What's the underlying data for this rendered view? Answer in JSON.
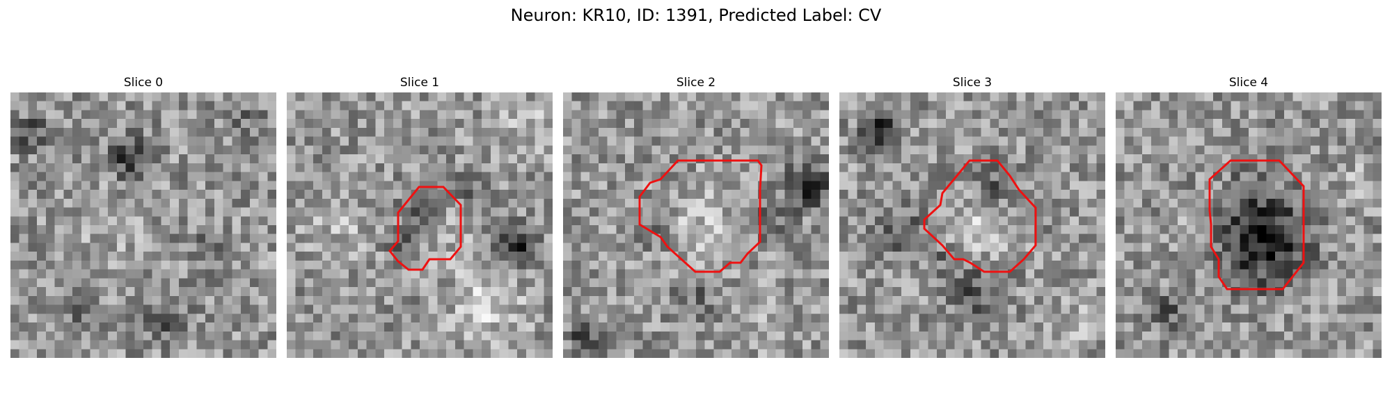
{
  "figure": {
    "title": "Neuron: KR10, ID: 1391, Predicted Label: CV"
  },
  "slices": [
    {
      "title": "Slice 0",
      "has_roi": false
    },
    {
      "title": "Slice 1",
      "has_roi": true
    },
    {
      "title": "Slice 2",
      "has_roi": true
    },
    {
      "title": "Slice 3",
      "has_roi": true
    },
    {
      "title": "Slice 4",
      "has_roi": true
    }
  ],
  "colors": {
    "roi_outline": "#ee1111",
    "colormap": "gray"
  }
}
